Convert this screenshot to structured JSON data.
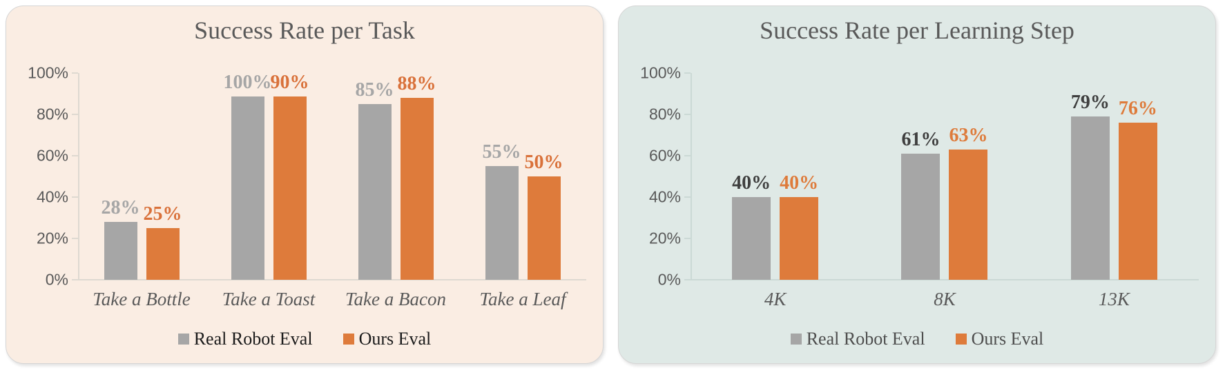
{
  "page_bg": "#FFFFFF",
  "chart_data": [
    {
      "type": "bar",
      "title": "Success Rate per Task",
      "categories": [
        "Take a Bottle",
        "Take a Toast",
        "Take a Bacon",
        "Take a Leaf"
      ],
      "series": [
        {
          "name": "Real Robot Eval",
          "values": [
            28,
            100,
            85,
            55
          ],
          "value_labels": [
            "28%",
            "100%",
            "85%",
            "55%"
          ],
          "bar_color": "#A6A6A6",
          "label_color": "#A6A6A6"
        },
        {
          "name": "Ours Eval",
          "values": [
            25,
            90,
            88,
            50
          ],
          "value_labels": [
            "25%",
            "90%",
            "88%",
            "50%"
          ],
          "bar_color": "#DE7B3B",
          "label_color": "#D9713A"
        }
      ],
      "y_ticks": [
        {
          "value": 0,
          "label": "0%"
        },
        {
          "value": 20,
          "label": "20%"
        },
        {
          "value": 40,
          "label": "40%"
        },
        {
          "value": 60,
          "label": "60%"
        },
        {
          "value": 80,
          "label": "80%"
        },
        {
          "value": 100,
          "label": "100%"
        }
      ],
      "ylim": [
        0,
        100
      ],
      "grid": false,
      "legend_position": "bottom",
      "legend": [
        "Real Robot Eval",
        "Ours Eval"
      ],
      "legend_text_color": "#1A1A1A",
      "panel_bg": "#FAEDE3",
      "axis_color": "#DED9D1",
      "title_color": "#595959",
      "tick_label_color": "#595959",
      "x_label_color": "#595959"
    },
    {
      "type": "bar",
      "title": "Success Rate per Learning Step",
      "categories": [
        "4K",
        "8K",
        "13K"
      ],
      "series": [
        {
          "name": "Real Robot Eval",
          "values": [
            40,
            61,
            79
          ],
          "value_labels": [
            "40%",
            "61%",
            "79%"
          ],
          "bar_color": "#A6A6A6",
          "label_color": "#3F3F3F"
        },
        {
          "name": "Ours Eval",
          "values": [
            40,
            63,
            76
          ],
          "value_labels": [
            "40%",
            "63%",
            "76%"
          ],
          "bar_color": "#DE7B3B",
          "label_color": "#DE7B3B"
        }
      ],
      "y_ticks": [
        {
          "value": 0,
          "label": "0%"
        },
        {
          "value": 20,
          "label": "20%"
        },
        {
          "value": 40,
          "label": "40%"
        },
        {
          "value": 60,
          "label": "60%"
        },
        {
          "value": 80,
          "label": "80%"
        },
        {
          "value": 100,
          "label": "100%"
        }
      ],
      "ylim": [
        0,
        100
      ],
      "grid": false,
      "legend_position": "bottom",
      "legend": [
        "Real Robot Eval",
        "Ours Eval"
      ],
      "legend_text_color": "#4D4D4D",
      "panel_bg": "#DFE9E6",
      "axis_color": "#CBD9D5",
      "title_color": "#595959",
      "tick_label_color": "#595959",
      "x_label_color": "#595959"
    }
  ]
}
